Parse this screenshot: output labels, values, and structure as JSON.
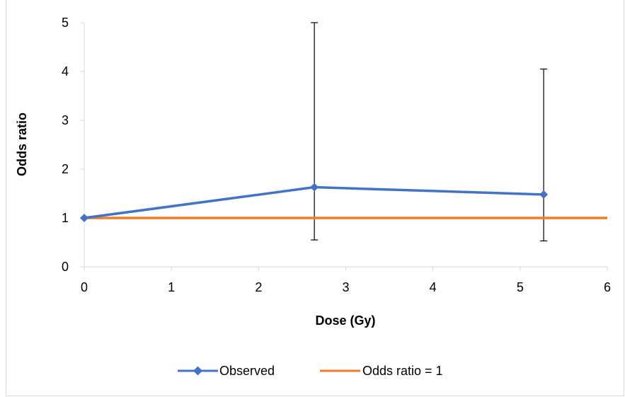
{
  "chart_data": {
    "type": "line",
    "xlabel": "Dose (Gy)",
    "ylabel": "Odds ratio",
    "xlim": [
      0,
      6
    ],
    "ylim": [
      0,
      5
    ],
    "x_ticks": [
      "0",
      "1",
      "2",
      "3",
      "4",
      "5",
      "6"
    ],
    "y_ticks": [
      "0",
      "1",
      "2",
      "3",
      "4",
      "5"
    ],
    "grid": false,
    "legend_position": "bottom",
    "series": [
      {
        "name": "Observed",
        "color": "#4472C4",
        "marker": "diamond",
        "x": [
          0,
          2.64,
          5.27
        ],
        "y": [
          1.0,
          1.63,
          1.48
        ],
        "error_low": [
          null,
          0.55,
          0.53
        ],
        "error_high": [
          null,
          5.0,
          4.05
        ]
      },
      {
        "name": "Odds ratio = 1",
        "color": "#ED7D31",
        "marker": "none",
        "x": [
          0,
          6
        ],
        "y": [
          1,
          1
        ]
      }
    ]
  }
}
